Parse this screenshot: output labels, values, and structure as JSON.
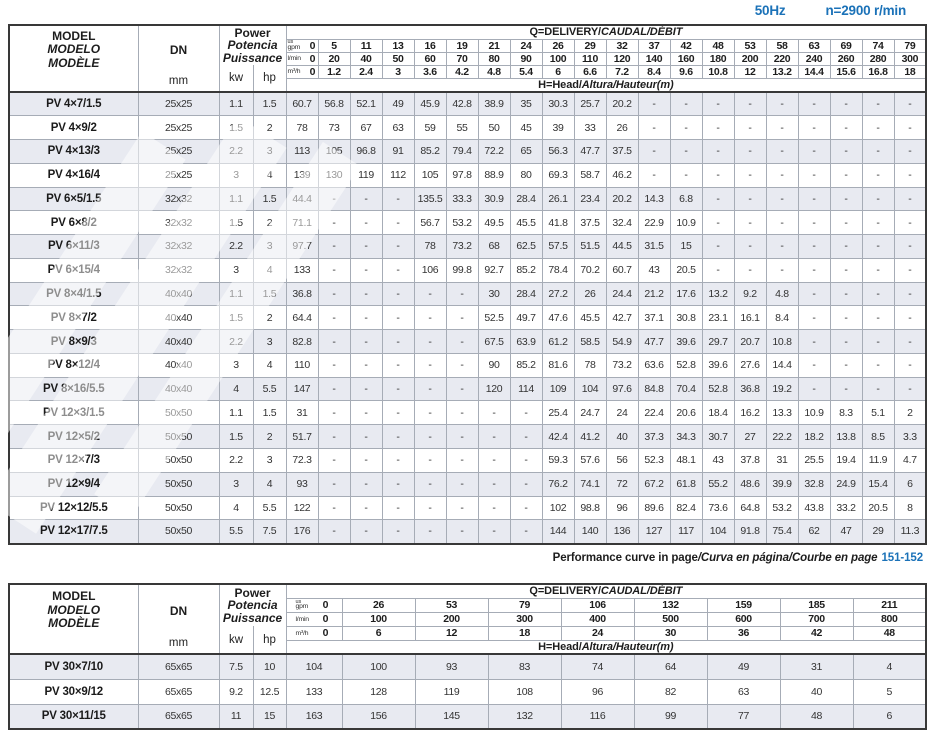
{
  "meta": {
    "frequency": "50Hz",
    "speed": "n=2900 r/min"
  },
  "labels": {
    "model_lines": [
      "MODEL",
      "MODELO",
      "MODÈLE"
    ],
    "dn": "DN",
    "mm": "mm",
    "power_lines": [
      "Power",
      "Potencia",
      "Puissance"
    ],
    "kw": "kw",
    "hp": "hp",
    "q_title_en": "Q=DELIVERY",
    "q_title_other": "CAUDAL/DÉBIT",
    "h_title_en": "H=Head",
    "h_title_other": "Altura/Hauteur(m)",
    "unit_us": "us",
    "unit_gpm": "gpm",
    "unit_lmin": "l/min",
    "unit_m3h": "m³/h"
  },
  "footer": {
    "en": "Performance curve in page",
    "other": "/Curva en página/Courbe en page",
    "pages": "151-152"
  },
  "table1": {
    "q_gpm": [
      "0",
      "5",
      "11",
      "13",
      "16",
      "19",
      "21",
      "24",
      "26",
      "29",
      "32",
      "37",
      "42",
      "48",
      "53",
      "58",
      "63",
      "69",
      "74",
      "79"
    ],
    "q_lmin": [
      "0",
      "20",
      "40",
      "50",
      "60",
      "70",
      "80",
      "90",
      "100",
      "110",
      "120",
      "140",
      "160",
      "180",
      "200",
      "220",
      "240",
      "260",
      "280",
      "300"
    ],
    "q_m3h": [
      "0",
      "1.2",
      "2.4",
      "3",
      "3.6",
      "4.2",
      "4.8",
      "5.4",
      "6",
      "6.6",
      "7.2",
      "8.4",
      "9.6",
      "10.8",
      "12",
      "13.2",
      "14.4",
      "15.6",
      "16.8",
      "18"
    ],
    "groups": [
      {
        "rows": [
          {
            "model": "PV 4×7/1.5",
            "dn": "25x25",
            "kw": "1.1",
            "hp": "1.5",
            "heads": [
              "60.7",
              "56.8",
              "52.1",
              "49",
              "45.9",
              "42.8",
              "38.9",
              "35",
              "30.3",
              "25.7",
              "20.2",
              "-",
              "-",
              "-",
              "-",
              "-",
              "-",
              "-",
              "-",
              "-"
            ]
          },
          {
            "model": "PV 4×9/2",
            "dn": "25x25",
            "kw": "1.5",
            "hp": "2",
            "heads": [
              "78",
              "73",
              "67",
              "63",
              "59",
              "55",
              "50",
              "45",
              "39",
              "33",
              "26",
              "-",
              "-",
              "-",
              "-",
              "-",
              "-",
              "-",
              "-",
              "-"
            ]
          },
          {
            "model": "PV 4×13/3",
            "dn": "25x25",
            "kw": "2.2",
            "hp": "3",
            "heads": [
              "113",
              "105",
              "96.8",
              "91",
              "85.2",
              "79.4",
              "72.2",
              "65",
              "56.3",
              "47.7",
              "37.5",
              "-",
              "-",
              "-",
              "-",
              "-",
              "-",
              "-",
              "-",
              "-"
            ]
          },
          {
            "model": "PV 4×16/4",
            "dn": "25x25",
            "kw": "3",
            "hp": "4",
            "heads": [
              "139",
              "130",
              "119",
              "112",
              "105",
              "97.8",
              "88.9",
              "80",
              "69.3",
              "58.7",
              "46.2",
              "-",
              "-",
              "-",
              "-",
              "-",
              "-",
              "-",
              "-",
              "-"
            ]
          }
        ]
      },
      {
        "rows": [
          {
            "model": "PV 6×5/1.5",
            "dn": "32x32",
            "kw": "1.1",
            "hp": "1.5",
            "heads": [
              "44.4",
              "-",
              "-",
              "-",
              "135.5",
              "33.3",
              "30.9",
              "28.4",
              "26.1",
              "23.4",
              "20.2",
              "14.3",
              "6.8",
              "-",
              "-",
              "-",
              "-",
              "-",
              "-",
              "-"
            ]
          },
          {
            "model": "PV 6×8/2",
            "dn": "32x32",
            "kw": "1.5",
            "hp": "2",
            "heads": [
              "71.1",
              "-",
              "-",
              "-",
              "56.7",
              "53.2",
              "49.5",
              "45.5",
              "41.8",
              "37.5",
              "32.4",
              "22.9",
              "10.9",
              "-",
              "-",
              "-",
              "-",
              "-",
              "-",
              "-"
            ]
          },
          {
            "model": "PV 6×11/3",
            "dn": "32x32",
            "kw": "2.2",
            "hp": "3",
            "heads": [
              "97.7",
              "-",
              "-",
              "-",
              "78",
              "73.2",
              "68",
              "62.5",
              "57.5",
              "51.5",
              "44.5",
              "31.5",
              "15",
              "-",
              "-",
              "-",
              "-",
              "-",
              "-",
              "-"
            ]
          },
          {
            "model": "PV 6×15/4",
            "dn": "32x32",
            "kw": "3",
            "hp": "4",
            "heads": [
              "133",
              "-",
              "-",
              "-",
              "106",
              "99.8",
              "92.7",
              "85.2",
              "78.4",
              "70.2",
              "60.7",
              "43",
              "20.5",
              "-",
              "-",
              "-",
              "-",
              "-",
              "-",
              "-"
            ]
          }
        ]
      },
      {
        "rows": [
          {
            "model": "PV 8×4/1.5",
            "dn": "40x40",
            "kw": "1.1",
            "hp": "1.5",
            "heads": [
              "36.8",
              "-",
              "-",
              "-",
              "-",
              "-",
              "30",
              "28.4",
              "27.2",
              "26",
              "24.4",
              "21.2",
              "17.6",
              "13.2",
              "9.2",
              "4.8",
              "-",
              "-",
              "-",
              "-"
            ]
          },
          {
            "model": "PV 8×7/2",
            "dn": "40x40",
            "kw": "1.5",
            "hp": "2",
            "heads": [
              "64.4",
              "-",
              "-",
              "-",
              "-",
              "-",
              "52.5",
              "49.7",
              "47.6",
              "45.5",
              "42.7",
              "37.1",
              "30.8",
              "23.1",
              "16.1",
              "8.4",
              "-",
              "-",
              "-",
              "-"
            ]
          },
          {
            "model": "PV 8×9/3",
            "dn": "40x40",
            "kw": "2.2",
            "hp": "3",
            "heads": [
              "82.8",
              "-",
              "-",
              "-",
              "-",
              "-",
              "67.5",
              "63.9",
              "61.2",
              "58.5",
              "54.9",
              "47.7",
              "39.6",
              "29.7",
              "20.7",
              "10.8",
              "-",
              "-",
              "-",
              "-"
            ]
          },
          {
            "model": "PV 8×12/4",
            "dn": "40x40",
            "kw": "3",
            "hp": "4",
            "heads": [
              "110",
              "-",
              "-",
              "-",
              "-",
              "-",
              "90",
              "85.2",
              "81.6",
              "78",
              "73.2",
              "63.6",
              "52.8",
              "39.6",
              "27.6",
              "14.4",
              "-",
              "-",
              "-",
              "-"
            ]
          },
          {
            "model": "PV 8×16/5.5",
            "dn": "40x40",
            "kw": "4",
            "hp": "5.5",
            "heads": [
              "147",
              "-",
              "-",
              "-",
              "-",
              "-",
              "120",
              "114",
              "109",
              "104",
              "97.6",
              "84.8",
              "70.4",
              "52.8",
              "36.8",
              "19.2",
              "-",
              "-",
              "-",
              "-"
            ]
          }
        ]
      },
      {
        "rows": [
          {
            "model": "PV 12×3/1.5",
            "dn": "50x50",
            "kw": "1.1",
            "hp": "1.5",
            "heads": [
              "31",
              "-",
              "-",
              "-",
              "-",
              "-",
              "-",
              "-",
              "25.4",
              "24.7",
              "24",
              "22.4",
              "20.6",
              "18.4",
              "16.2",
              "13.3",
              "10.9",
              "8.3",
              "5.1",
              "2"
            ]
          },
          {
            "model": "PV 12×5/2",
            "dn": "50x50",
            "kw": "1.5",
            "hp": "2",
            "heads": [
              "51.7",
              "-",
              "-",
              "-",
              "-",
              "-",
              "-",
              "-",
              "42.4",
              "41.2",
              "40",
              "37.3",
              "34.3",
              "30.7",
              "27",
              "22.2",
              "18.2",
              "13.8",
              "8.5",
              "3.3"
            ]
          },
          {
            "model": "PV 12×7/3",
            "dn": "50x50",
            "kw": "2.2",
            "hp": "3",
            "heads": [
              "72.3",
              "-",
              "-",
              "-",
              "-",
              "-",
              "-",
              "-",
              "59.3",
              "57.6",
              "56",
              "52.3",
              "48.1",
              "43",
              "37.8",
              "31",
              "25.5",
              "19.4",
              "11.9",
              "4.7"
            ]
          },
          {
            "model": "PV 12×9/4",
            "dn": "50x50",
            "kw": "3",
            "hp": "4",
            "heads": [
              "93",
              "-",
              "-",
              "-",
              "-",
              "-",
              "-",
              "-",
              "76.2",
              "74.1",
              "72",
              "67.2",
              "61.8",
              "55.2",
              "48.6",
              "39.9",
              "32.8",
              "24.9",
              "15.4",
              "6"
            ]
          },
          {
            "model": "PV 12×12/5.5",
            "dn": "50x50",
            "kw": "4",
            "hp": "5.5",
            "heads": [
              "122",
              "-",
              "-",
              "-",
              "-",
              "-",
              "-",
              "-",
              "102",
              "98.8",
              "96",
              "89.6",
              "82.4",
              "73.6",
              "64.8",
              "53.2",
              "43.8",
              "33.2",
              "20.5",
              "8"
            ]
          },
          {
            "model": "PV 12×17/7.5",
            "dn": "50x50",
            "kw": "5.5",
            "hp": "7.5",
            "heads": [
              "176",
              "-",
              "-",
              "-",
              "-",
              "-",
              "-",
              "-",
              "144",
              "140",
              "136",
              "127",
              "117",
              "104",
              "91.8",
              "75.4",
              "62",
              "47",
              "29",
              "11.3"
            ]
          }
        ]
      }
    ]
  },
  "table2": {
    "q_gpm": [
      "0",
      "26",
      "53",
      "79",
      "106",
      "132",
      "159",
      "185",
      "211"
    ],
    "q_lmin": [
      "0",
      "100",
      "200",
      "300",
      "400",
      "500",
      "600",
      "700",
      "800"
    ],
    "q_m3h": [
      "0",
      "6",
      "12",
      "18",
      "24",
      "30",
      "36",
      "42",
      "48"
    ],
    "groups": [
      {
        "rows": [
          {
            "model": "PV 30×7/10",
            "dn": "65x65",
            "kw": "7.5",
            "hp": "10",
            "heads": [
              "104",
              "100",
              "93",
              "83",
              "74",
              "64",
              "49",
              "31",
              "4"
            ]
          },
          {
            "model": "PV 30×9/12",
            "dn": "65x65",
            "kw": "9.2",
            "hp": "12.5",
            "heads": [
              "133",
              "128",
              "119",
              "108",
              "96",
              "82",
              "63",
              "40",
              "5"
            ]
          },
          {
            "model": "PV 30×11/15",
            "dn": "65x65",
            "kw": "11",
            "hp": "15",
            "heads": [
              "163",
              "156",
              "145",
              "132",
              "116",
              "99",
              "77",
              "48",
              "6"
            ]
          }
        ]
      }
    ]
  }
}
